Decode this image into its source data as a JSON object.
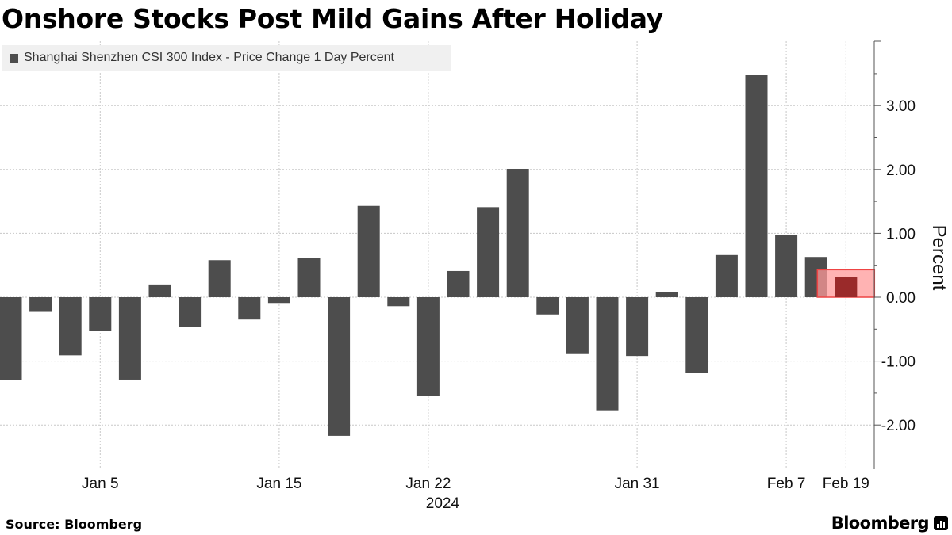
{
  "title": "Onshore Stocks Post Mild Gains After Holiday",
  "source": "Source: Bloomberg",
  "brand": "Bloomberg",
  "brand_icon": "bloomberg-terminal-icon",
  "colors": {
    "bar": "#4d4d4d",
    "highlight_fill": "#ff9a9a",
    "highlight_stroke": "#ee4444",
    "highlight_bar": "#9a2a2a",
    "grid": "#c8c8c8",
    "axis": "#555555",
    "legend_bg": "#f0f0f0"
  },
  "chart_data": {
    "type": "bar",
    "title": "Onshore Stocks Post Mild Gains After Holiday",
    "xlabel": "",
    "ylabel": "Percent",
    "year_label": "2024",
    "legend_position": "top-left",
    "grid": true,
    "ylim": [
      -2.7,
      4.0
    ],
    "yticks": [
      3.0,
      2.0,
      1.0,
      0.0,
      -1.0,
      -2.0
    ],
    "ytick_labels": [
      "3.00",
      "2.00",
      "1.00",
      "0.00",
      "-1.00",
      "-2.00"
    ],
    "xtick_labels": [
      "Jan 5",
      "Jan 15",
      "Jan 22",
      "Jan 31",
      "Feb 7",
      "Feb 19"
    ],
    "xtick_bar_index": [
      3,
      9,
      14,
      21,
      26,
      28
    ],
    "highlight_bar_index": 28,
    "series": [
      {
        "name": "Shanghai Shenzhen CSI 300 Index - Price Change 1 Day Percent",
        "values": [
          -1.3,
          -0.23,
          -0.91,
          -0.53,
          -1.29,
          0.2,
          -0.46,
          0.58,
          -0.35,
          -0.09,
          0.61,
          -2.17,
          1.43,
          -0.14,
          -1.55,
          0.41,
          1.41,
          2.01,
          -0.27,
          -0.89,
          -1.77,
          -0.92,
          0.08,
          -1.18,
          0.66,
          3.48,
          0.97,
          0.63,
          0.32
        ]
      }
    ]
  }
}
